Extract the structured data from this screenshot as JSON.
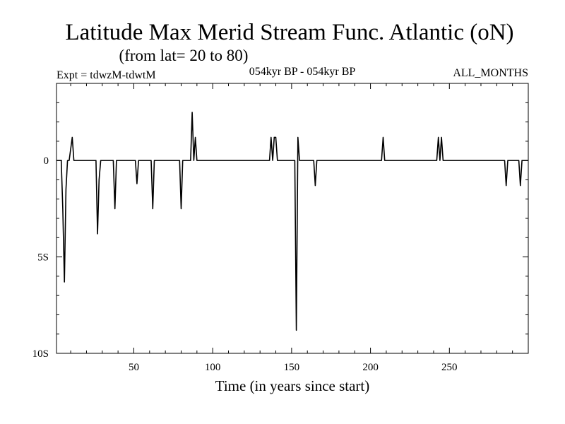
{
  "chart_data": {
    "type": "line",
    "title": "Latitude Max Merid Stream Func. Atlantic (oN)",
    "subtitle": "(from lat= 20 to 80)",
    "expt_label": "Expt = tdwzM-tdwtM",
    "period_label": "054kyr BP - 054kyr BP",
    "months_label": "ALL_MONTHS",
    "xlabel": "Time (in years since start)",
    "ylabel": "",
    "xlim": [
      1,
      300
    ],
    "ylim": [
      -10,
      4
    ],
    "x_ticks": [
      50,
      100,
      150,
      200,
      250
    ],
    "x_tick_labels": [
      "50",
      "100",
      "150",
      "200",
      "250"
    ],
    "y_ticks": [
      0,
      -5,
      -10
    ],
    "y_tick_labels": [
      "0",
      "5S",
      "10S"
    ],
    "series": [
      {
        "name": "tdwzM-tdwtM",
        "x": [
          1,
          4,
          5,
          6,
          7,
          8,
          9,
          10,
          11,
          12,
          26,
          27,
          28,
          29,
          37,
          38,
          39,
          40,
          51,
          52,
          53,
          61,
          62,
          63,
          79,
          80,
          81,
          86,
          87,
          88,
          89,
          90,
          136,
          137,
          138,
          139,
          140,
          141,
          142,
          143,
          152,
          153,
          154,
          155,
          156,
          164,
          165,
          166,
          207,
          208,
          209,
          242,
          243,
          244,
          245,
          246,
          285,
          286,
          287,
          294,
          295,
          296,
          300
        ],
        "y": [
          0,
          0,
          -2.5,
          -6.3,
          -1.5,
          0,
          0,
          0.6,
          1.2,
          0,
          0,
          -3.8,
          -1,
          0,
          0,
          -2.5,
          0,
          0,
          0,
          -1.2,
          0,
          0,
          -2.5,
          0,
          0,
          -2.5,
          0,
          0,
          2.5,
          0,
          1.2,
          0,
          0,
          1.2,
          0,
          1.2,
          1.2,
          0,
          0,
          0,
          0,
          -8.8,
          1.2,
          0,
          0,
          0,
          -1.3,
          0,
          0,
          1.2,
          0,
          0,
          1.2,
          0,
          1.2,
          0,
          0,
          -1.3,
          0,
          0,
          -1.3,
          0,
          0
        ]
      }
    ]
  }
}
